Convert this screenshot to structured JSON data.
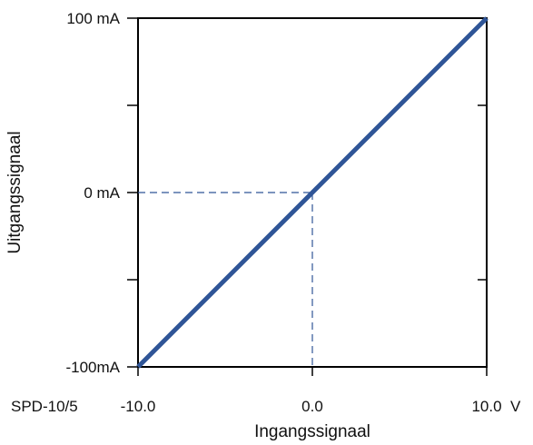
{
  "chart_data": {
    "type": "line",
    "xlabel": "Ingangssignaal",
    "ylabel": "Uitgangssignaal",
    "xlim": [
      -10,
      10
    ],
    "ylim": [
      -100,
      100
    ],
    "x_ticks": [
      {
        "value": -10,
        "label": "-10.0"
      },
      {
        "value": 0,
        "label": "0.0"
      },
      {
        "value": 10,
        "label": "10.0"
      }
    ],
    "x_unit": "V",
    "y_ticks": [
      {
        "value": 100,
        "label": "100  mA"
      },
      {
        "value": 0,
        "label": "0  mA"
      },
      {
        "value": -100,
        "label": "-100mA"
      }
    ],
    "y_minor_ticks": [
      50,
      -50
    ],
    "model_label": "SPD-10/5",
    "series": [
      {
        "x": [
          -10,
          10
        ],
        "y": [
          -100,
          100
        ],
        "color": "#2f5597"
      }
    ],
    "reference_lines": {
      "x": 0,
      "y": 0,
      "style": "dashed",
      "color": "#2f5597"
    },
    "grid": false
  }
}
